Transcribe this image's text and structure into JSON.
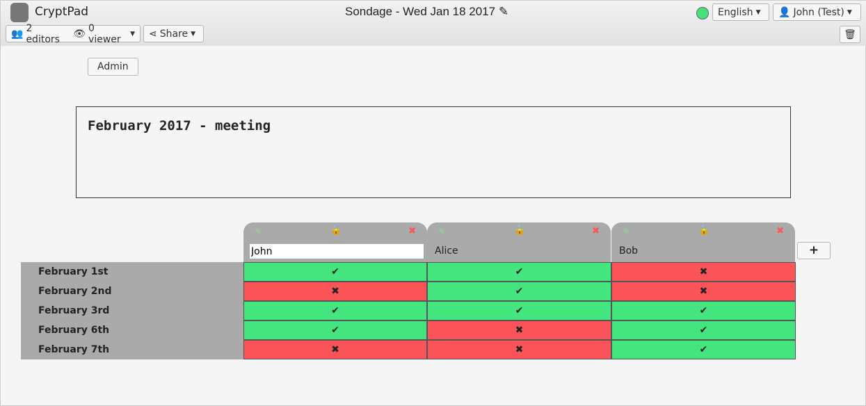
{
  "header": {
    "app_name": "CryptPad",
    "title": "Sondage - Wed Jan 18 2017",
    "editors": "2 editors",
    "viewers": "0 viewer",
    "share": "Share",
    "language": "English",
    "user": "John (Test)",
    "status_color": "#46e07d"
  },
  "admin_label": "Admin",
  "pad_text": "February 2017 - meeting",
  "colors": {
    "yes": "#44e47e",
    "no": "#fa5458"
  },
  "poll": {
    "columns": [
      {
        "name": "John",
        "locked": false,
        "editing": true
      },
      {
        "name": "Alice",
        "locked": true
      },
      {
        "name": "Bob",
        "locked": true
      }
    ],
    "rows": [
      "February 1st",
      "February 2nd",
      "February 3rd",
      "February 6th",
      "February 7th"
    ],
    "values": [
      [
        true,
        false,
        true,
        true,
        false
      ],
      [
        true,
        true,
        true,
        false,
        false
      ],
      [
        false,
        false,
        true,
        true,
        true
      ]
    ],
    "add_column": "+"
  }
}
